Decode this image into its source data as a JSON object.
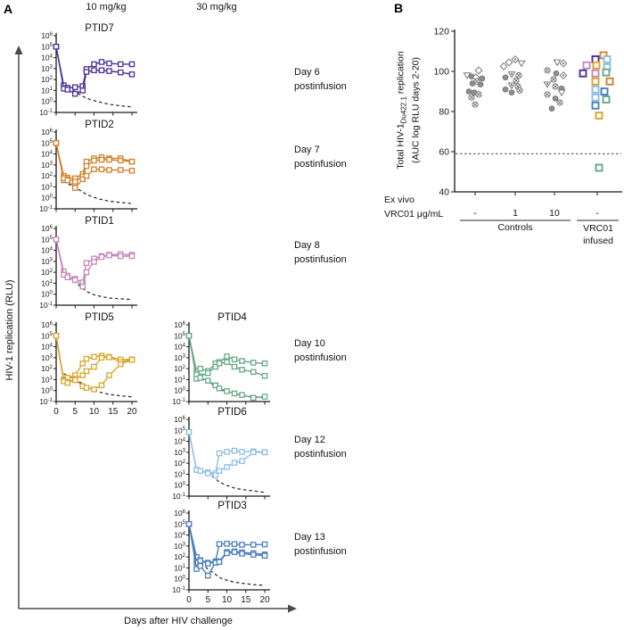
{
  "panelA": {
    "label": "A",
    "col_headers": [
      "10 mg/kg",
      "30 mg/kg"
    ],
    "y_axis_label": "HIV-1 replication (RLU)",
    "x_axis_label": "Days after HIV challenge",
    "day_labels": [
      {
        "line1": "Day 6",
        "line2": "postinfusion"
      },
      {
        "line1": "Day 7",
        "line2": "postinfusion"
      },
      {
        "line1": "Day 8",
        "line2": "postinfusion"
      },
      {
        "line1": "Day 10",
        "line2": "postinfusion"
      },
      {
        "line1": "Day 12",
        "line2": "postinfusion"
      },
      {
        "line1": "Day 13",
        "line2": "postinfusion"
      }
    ]
  },
  "panelB": {
    "label": "B",
    "y_axis_label": {
      "prefix": "Total HIV-1",
      "sub": "Du422.1",
      "suffix": " replication",
      "line2": "(AUC log RLU days 2-20)"
    },
    "x_axis_label_line1": "Ex vivo",
    "x_axis_label_line2": "VRC01 μg/mL",
    "group_labels": [
      "-",
      "1",
      "10",
      "-"
    ],
    "bracket_controls": "Controls",
    "bracket_vrc01_line1": "VRC01",
    "bracket_vrc01_line2": "infused"
  },
  "colors": {
    "purple": "#4B3097",
    "orange": "#D2812D",
    "pink": "#C687BC",
    "gold": "#D9A62C",
    "green": "#67A985",
    "lightblue": "#8BBFE4",
    "blue": "#4B7EBC",
    "gray_symbol": "#777777",
    "dashed": "#222222",
    "axis": "#4a4a4a"
  },
  "chart_data": [
    {
      "type": "line",
      "id": "PTID7",
      "title": "PTID7",
      "dose": "10 mg/kg",
      "color_key": "purple",
      "ylog": true,
      "ylim": [
        0.1,
        1000000
      ],
      "x": [
        0,
        2,
        3,
        5,
        7,
        8,
        10,
        12,
        14,
        17,
        20
      ],
      "xticks": [
        0,
        5,
        10,
        15,
        20
      ],
      "series": [
        {
          "name": "replicate 1",
          "values": [
            100000,
            30,
            18,
            20,
            25,
            900,
            2500,
            4000,
            3000,
            2500,
            2500
          ]
        },
        {
          "name": "replicate 2",
          "values": [
            100000,
            15,
            12,
            5,
            10,
            500,
            700,
            700,
            600,
            450,
            300
          ]
        }
      ],
      "decay": {
        "name": "input virus decay (dashed)",
        "values": [
          null,
          50,
          25,
          8,
          3,
          2,
          1.2,
          0.8,
          0.55,
          0.4,
          0.32
        ]
      }
    },
    {
      "type": "line",
      "id": "PTID2",
      "title": "PTID2",
      "dose": "10 mg/kg",
      "color_key": "orange",
      "ylog": true,
      "ylim": [
        0.1,
        1000000
      ],
      "x": [
        0,
        2,
        3,
        5,
        7,
        8,
        10,
        12,
        14,
        17,
        20
      ],
      "xticks": [
        0,
        5,
        10,
        15,
        20
      ],
      "series": [
        {
          "name": "replicate 1",
          "values": [
            100000,
            100,
            70,
            60,
            150,
            2000,
            4000,
            5000,
            4000,
            4000,
            2000
          ]
        },
        {
          "name": "replicate 2",
          "values": [
            100000,
            40,
            50,
            30,
            90,
            800,
            2500,
            3000,
            3000,
            2500,
            2000
          ]
        },
        {
          "name": "replicate 3",
          "values": [
            100000,
            60,
            40,
            8,
            50,
            100,
            400,
            400,
            350,
            350,
            300
          ]
        }
      ],
      "decay": {
        "name": "input virus decay (dashed)",
        "values": [
          null,
          40,
          20,
          9,
          3.5,
          2,
          1.1,
          0.7,
          0.5,
          0.38,
          0.3
        ]
      }
    },
    {
      "type": "line",
      "id": "PTID1",
      "title": "PTID1",
      "dose": "10 mg/kg",
      "color_key": "pink",
      "ylog": true,
      "ylim": [
        0.1,
        1000000
      ],
      "x": [
        0,
        2,
        3,
        5,
        7,
        8,
        10,
        12,
        14,
        17,
        20
      ],
      "xticks": [
        0,
        5,
        10,
        15,
        20
      ],
      "series": [
        {
          "name": "replicate 1",
          "values": [
            100000,
            120,
            50,
            25,
            12,
            700,
            1800,
            3000,
            4000,
            4500,
            4000
          ]
        },
        {
          "name": "replicate 2",
          "values": [
            100000,
            60,
            35,
            20,
            5,
            100,
            900,
            2500,
            3500,
            3000,
            3000
          ]
        }
      ],
      "decay": {
        "name": "input virus decay (dashed)",
        "values": [
          null,
          60,
          30,
          12,
          3.5,
          1.8,
          0.9,
          0.6,
          0.45,
          0.38,
          0.33
        ]
      }
    },
    {
      "type": "line",
      "id": "PTID5",
      "title": "PTID5",
      "dose": "10 mg/kg",
      "color_key": "gold",
      "ylog": true,
      "ylim": [
        0.1,
        1000000
      ],
      "x": [
        0,
        2,
        3,
        5,
        7,
        8,
        10,
        12,
        14,
        17,
        20
      ],
      "xticks": [
        0,
        5,
        10,
        15,
        20
      ],
      "series": [
        {
          "name": "replicate 1",
          "values": [
            100000,
            10,
            15,
            25,
            300,
            800,
            1200,
            1500,
            1200,
            700,
            700
          ]
        },
        {
          "name": "replicate 2",
          "values": [
            100000,
            8,
            6,
            12,
            25,
            60,
            150,
            1000,
            1100,
            400,
            650
          ]
        },
        {
          "name": "replicate 3",
          "values": [
            100000,
            7,
            5,
            9,
            2.5,
            1.8,
            1.3,
            3,
            25,
            250,
            650
          ]
        }
      ],
      "decay": {
        "name": "input virus decay (dashed)",
        "values": [
          null,
          35,
          22,
          11,
          4,
          2.2,
          1.1,
          0.65,
          0.45,
          0.33,
          0.27
        ]
      }
    },
    {
      "type": "line",
      "id": "PTID4",
      "title": "PTID4",
      "dose": "30 mg/kg",
      "color_key": "green",
      "ylog": true,
      "ylim": [
        0.1,
        1000000
      ],
      "x": [
        0,
        2,
        3,
        5,
        7,
        8,
        10,
        12,
        14,
        17,
        20
      ],
      "xticks": [
        0,
        5,
        10,
        15,
        20
      ],
      "series": [
        {
          "name": "replicate 1",
          "values": [
            100000,
            60,
            100,
            60,
            300,
            400,
            1300,
            700,
            500,
            350,
            300
          ]
        },
        {
          "name": "replicate 2",
          "values": [
            100000,
            12,
            20,
            40,
            150,
            300,
            400,
            150,
            80,
            50,
            22
          ]
        },
        {
          "name": "replicate 3",
          "values": [
            100000,
            30,
            15,
            8,
            3,
            1.6,
            0.9,
            0.55,
            0.4,
            0.22,
            0.28
          ]
        }
      ],
      "decay": {
        "name": "input virus decay (dashed)",
        "values": [
          null,
          28,
          14,
          6.5,
          2.6,
          1.4,
          0.75,
          0.5,
          0.38,
          0.28,
          0.22
        ]
      }
    },
    {
      "type": "line",
      "id": "PTID6",
      "title": "PTID6",
      "dose": "30 mg/kg",
      "color_key": "lightblue",
      "ylog": true,
      "ylim": [
        0.1,
        1000000
      ],
      "x": [
        0,
        2,
        3,
        5,
        7,
        8,
        10,
        12,
        14,
        17,
        20
      ],
      "xticks": [
        0,
        5,
        10,
        15,
        20
      ],
      "series": [
        {
          "name": "replicate 1",
          "values": [
            70000,
            25,
            20,
            15,
            12,
            800,
            1100,
            1400,
            1100,
            1200,
            1000
          ]
        },
        {
          "name": "replicate 2",
          "values": [
            70000,
            25,
            20,
            12,
            8,
            20,
            45,
            110,
            160,
            1000,
            1000
          ]
        }
      ],
      "decay": {
        "name": "input virus decay (dashed)",
        "values": [
          null,
          35,
          22,
          12,
          4,
          1.9,
          0.95,
          0.55,
          0.4,
          0.3,
          0.22
        ]
      }
    },
    {
      "type": "line",
      "id": "PTID3",
      "title": "PTID3",
      "dose": "30 mg/kg",
      "color_key": "blue",
      "ylog": true,
      "ylim": [
        0.1,
        1000000
      ],
      "x": [
        0,
        2,
        3,
        5,
        7,
        8,
        10,
        12,
        14,
        17,
        20
      ],
      "xticks": [
        0,
        5,
        10,
        15,
        20
      ],
      "series": [
        {
          "name": "replicate 1",
          "values": [
            100000,
            100,
            50,
            30,
            40,
            1500,
            1600,
            1500,
            1300,
            1300,
            1400
          ]
        },
        {
          "name": "replicate 2",
          "values": [
            100000,
            30,
            45,
            25,
            35,
            40,
            280,
            320,
            260,
            220,
            170
          ]
        },
        {
          "name": "replicate 3",
          "values": [
            100000,
            8,
            15,
            2,
            30,
            35,
            220,
            280,
            200,
            160,
            130
          ]
        }
      ],
      "decay": {
        "name": "input virus decay (dashed)",
        "values": [
          null,
          55,
          28,
          8,
          2.6,
          1.3,
          0.75,
          0.5,
          0.4,
          0.3,
          0.25
        ]
      }
    },
    {
      "type": "scatter",
      "id": "panelB",
      "title": "Total HIV-1Du422.1 replication (AUC log RLU days 2-20)",
      "ylim": [
        40,
        120
      ],
      "y_ticks": [
        40,
        60,
        80,
        100,
        120
      ],
      "threshold": 59,
      "groups": [
        {
          "label": "-",
          "bracket": "Controls",
          "points": [
            {
              "v": 100.5,
              "dx": 4,
              "s": "diamond"
            },
            {
              "v": 98,
              "dx": -9,
              "s": "triangleDown"
            },
            {
              "v": 97.5,
              "dx": -4,
              "s": "circle"
            },
            {
              "v": 97,
              "dx": 1,
              "s": "diamond"
            },
            {
              "v": 96.5,
              "dx": 8,
              "s": "circle"
            },
            {
              "v": 95,
              "dx": 2,
              "s": "circleX"
            },
            {
              "v": 94,
              "dx": -3,
              "s": "circle"
            },
            {
              "v": 93.5,
              "dx": 6,
              "s": "circle"
            },
            {
              "v": 90,
              "dx": -7,
              "s": "circle"
            },
            {
              "v": 89.5,
              "dx": -1,
              "s": "circle"
            },
            {
              "v": 88.5,
              "dx": 4,
              "s": "circleX"
            },
            {
              "v": 87,
              "dx": -4,
              "s": "circleX"
            },
            {
              "v": 83.5,
              "dx": 0,
              "s": "circleX"
            }
          ]
        },
        {
          "label": "1",
          "bracket": "Controls",
          "points": [
            {
              "v": 106,
              "dx": 0,
              "s": "diamondDot"
            },
            {
              "v": 104.5,
              "dx": -7,
              "s": "diamond"
            },
            {
              "v": 104,
              "dx": 7,
              "s": "triangleDown"
            },
            {
              "v": 102.5,
              "dx": -13,
              "s": "diamond"
            },
            {
              "v": 98.5,
              "dx": -4,
              "s": "triangleDownDot"
            },
            {
              "v": 98,
              "dx": 4,
              "s": "circleX"
            },
            {
              "v": 97,
              "dx": -11,
              "s": "circle"
            },
            {
              "v": 95.5,
              "dx": 1,
              "s": "circleX"
            },
            {
              "v": 93,
              "dx": -4,
              "s": "triangleDownDot"
            },
            {
              "v": 92.5,
              "dx": 3,
              "s": "circleX"
            },
            {
              "v": 91,
              "dx": -11,
              "s": "circle"
            },
            {
              "v": 90.5,
              "dx": 5,
              "s": "circleX"
            },
            {
              "v": 89.5,
              "dx": -4,
              "s": "circle"
            }
          ]
        },
        {
          "label": "10",
          "bracket": "Controls",
          "points": [
            {
              "v": 104.5,
              "dx": 3,
              "s": "triangleDown"
            },
            {
              "v": 104,
              "dx": 10,
              "s": "diamondDot"
            },
            {
              "v": 100.5,
              "dx": -8,
              "s": "circleX"
            },
            {
              "v": 99,
              "dx": 2,
              "s": "circle"
            },
            {
              "v": 98,
              "dx": 10,
              "s": "diamondDot"
            },
            {
              "v": 96,
              "dx": -1,
              "s": "circleX"
            },
            {
              "v": 93.5,
              "dx": -8,
              "s": "triangleDownDot"
            },
            {
              "v": 92.5,
              "dx": 1,
              "s": "circleX"
            },
            {
              "v": 91.5,
              "dx": 8,
              "s": "circle"
            },
            {
              "v": 89.5,
              "dx": 8,
              "s": "triangleDown"
            },
            {
              "v": 88.5,
              "dx": -8,
              "s": "circleX"
            },
            {
              "v": 86.5,
              "dx": 1,
              "s": "circle"
            },
            {
              "v": 84.5,
              "dx": 6,
              "s": "circleX"
            },
            {
              "v": 81.5,
              "dx": -3,
              "s": "circle"
            }
          ]
        },
        {
          "label": "-",
          "bracket": "VRC01 infused",
          "points": [
            {
              "v": 108,
              "dx": 7,
              "c": "orange"
            },
            {
              "v": 106,
              "dx": -2,
              "c": "purple"
            },
            {
              "v": 106,
              "dx": 11,
              "c": "lightblue"
            },
            {
              "v": 103,
              "dx": -12,
              "c": "pink"
            },
            {
              "v": 103,
              "dx": -1,
              "c": "gold"
            },
            {
              "v": 102,
              "dx": 11,
              "c": "lightblue"
            },
            {
              "v": 99,
              "dx": -16,
              "c": "purple"
            },
            {
              "v": 99,
              "dx": -2,
              "c": "pink"
            },
            {
              "v": 99.5,
              "dx": 10,
              "c": "green"
            },
            {
              "v": 95,
              "dx": -2,
              "c": "gold"
            },
            {
              "v": 95,
              "dx": 14,
              "c": "orange"
            },
            {
              "v": 91,
              "dx": -2,
              "c": "lightblue"
            },
            {
              "v": 90,
              "dx": 8,
              "c": "blue"
            },
            {
              "v": 87,
              "dx": -2,
              "c": "lightblue"
            },
            {
              "v": 86,
              "dx": 10,
              "c": "green"
            },
            {
              "v": 83,
              "dx": -2,
              "c": "blue"
            },
            {
              "v": 78,
              "dx": 2,
              "c": "gold"
            },
            {
              "v": 52,
              "dx": 2,
              "c": "green"
            }
          ]
        }
      ]
    }
  ]
}
